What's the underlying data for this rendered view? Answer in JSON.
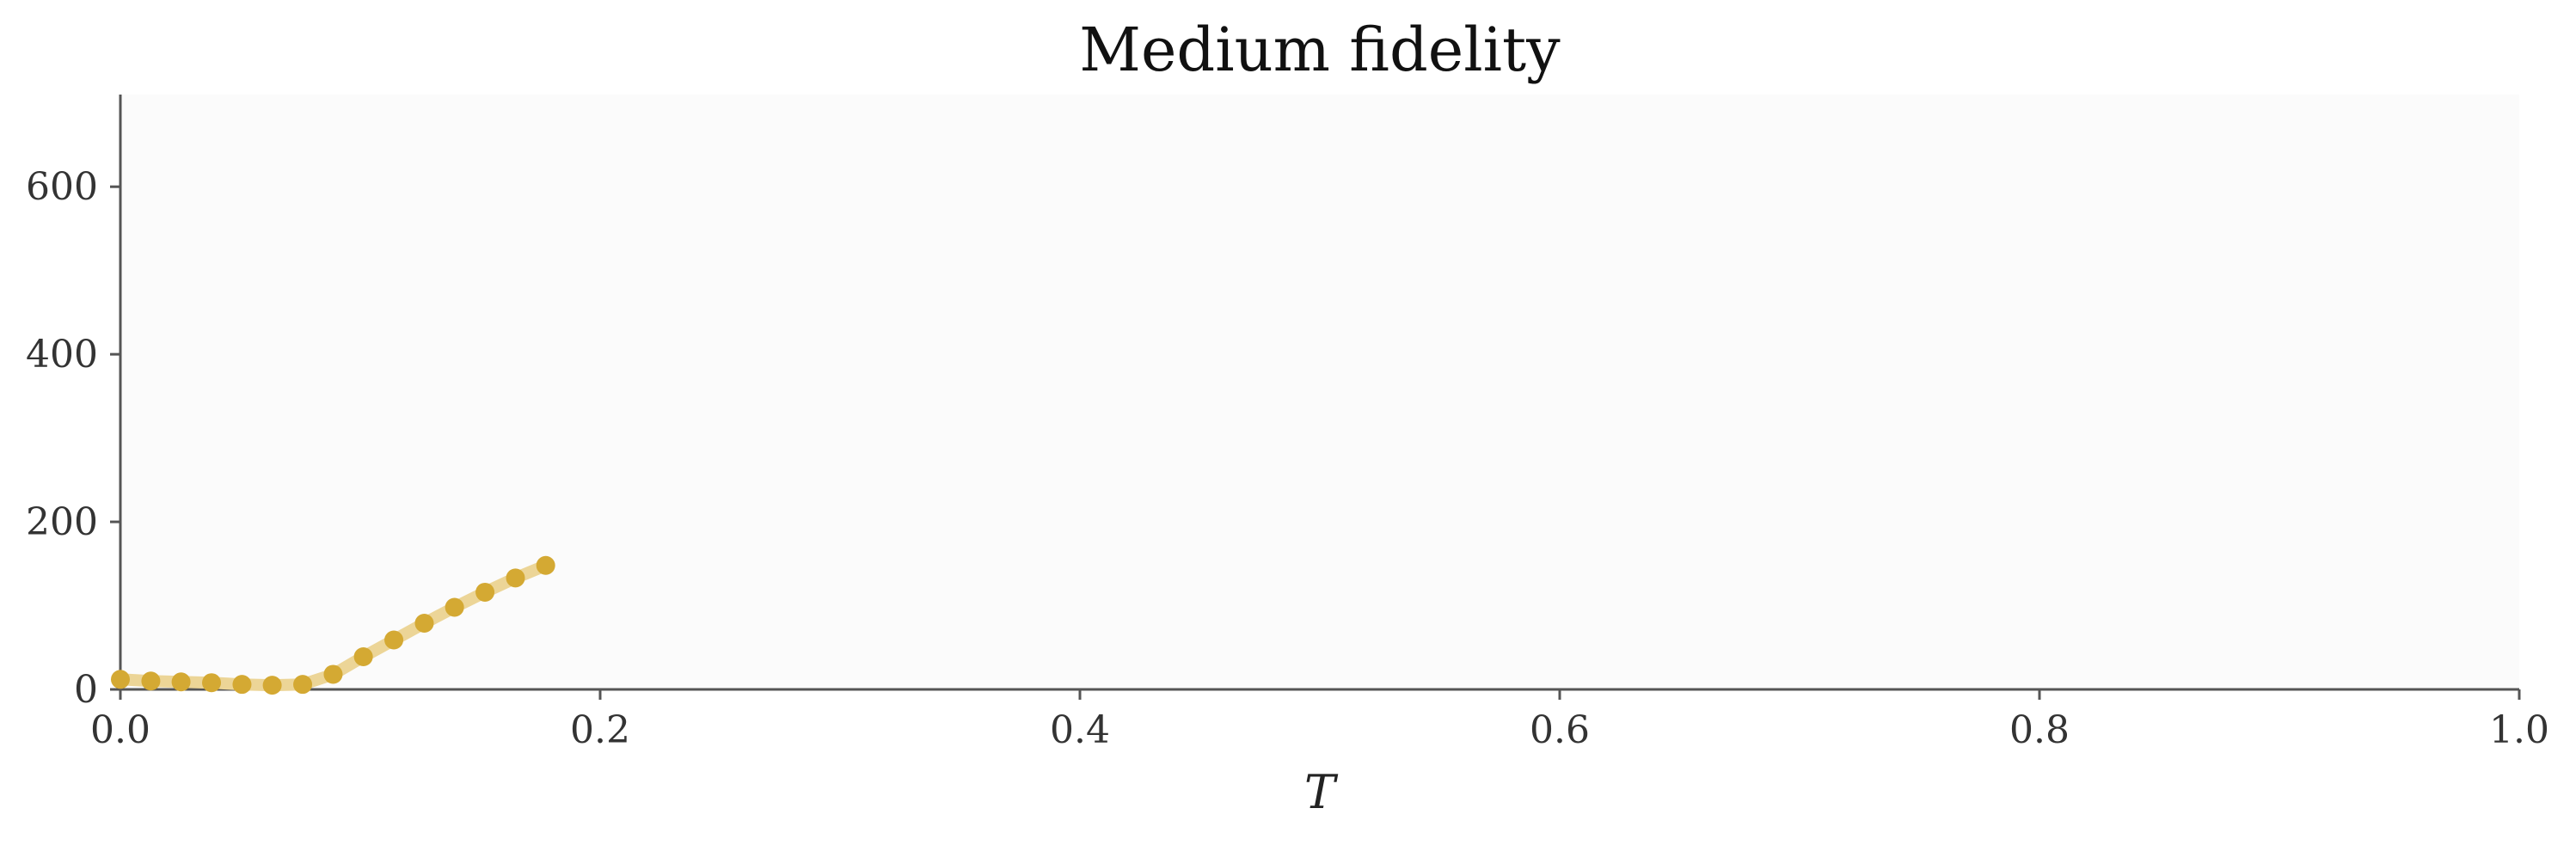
{
  "chart_data": {
    "type": "line",
    "title": "Medium fidelity",
    "xlabel": "T",
    "ylabel": "",
    "xlim": [
      0.0,
      1.0
    ],
    "ylim": [
      0,
      710
    ],
    "x_ticks": [
      "0.0",
      "0.2",
      "0.4",
      "0.6",
      "0.8",
      "1.0"
    ],
    "y_ticks": [
      "0",
      "200",
      "400",
      "600"
    ],
    "grid": false,
    "legend": "none",
    "colors": {
      "plot_background": "#fbfbfb",
      "axis": "#555555",
      "series_marker": "#d4a933",
      "series_line": "#ecd597"
    },
    "series": [
      {
        "x": [
          0.0,
          0.0127,
          0.0253,
          0.038,
          0.0507,
          0.0633,
          0.076,
          0.0887,
          0.1013,
          0.114,
          0.1267,
          0.1393,
          0.152,
          0.1647,
          0.1773
        ],
        "values": [
          12,
          10,
          9,
          8,
          6,
          5,
          6,
          18,
          39,
          59,
          79,
          98,
          116,
          133,
          148
        ]
      }
    ]
  }
}
